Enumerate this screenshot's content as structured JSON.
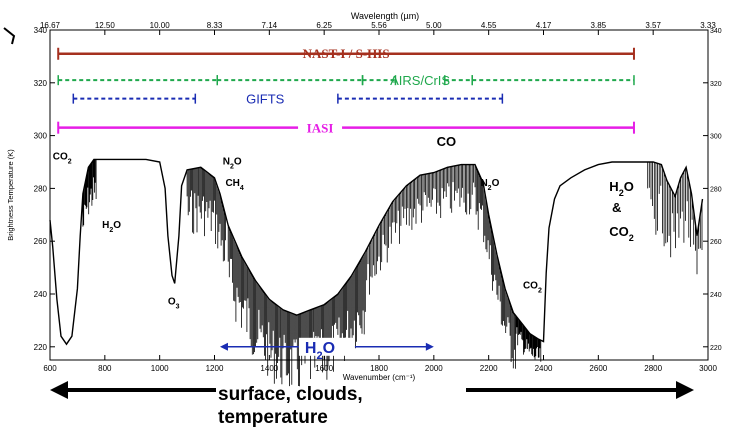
{
  "header_title": "Wavelength (µm)",
  "chart_data": {
    "type": "line",
    "title": "",
    "xlabel": "Wavenumber (cm⁻¹)",
    "ylabel": "Brightness Temperature (K)",
    "top_axis_label": "Wavelength (µm)",
    "xlim": [
      600,
      3000
    ],
    "ylim": [
      215,
      340
    ],
    "x_ticks": [
      "600",
      "800",
      "1000",
      "1200",
      "1400",
      "1600",
      "1800",
      "2000",
      "2200",
      "2400",
      "2600",
      "2800",
      "3000"
    ],
    "y_ticks_left": [
      "220",
      "240",
      "260",
      "280",
      "300",
      "320",
      "340"
    ],
    "y_ticks_right": [
      "220",
      "240",
      "260",
      "280",
      "300",
      "320",
      "340"
    ],
    "top_ticks": [
      "16.67",
      "12.50",
      "10.00",
      "8.33",
      "7.14",
      "6.25",
      "5.56",
      "5.00",
      "4.55",
      "4.17",
      "3.85",
      "3.57",
      "3.33"
    ],
    "spectrum": {
      "x": [
        600,
        610,
        625,
        640,
        660,
        680,
        700,
        710,
        720,
        740,
        760,
        800,
        850,
        900,
        950,
        1000,
        1020,
        1030,
        1045,
        1055,
        1070,
        1080,
        1100,
        1150,
        1200,
        1220,
        1250,
        1300,
        1350,
        1400,
        1450,
        1500,
        1550,
        1600,
        1650,
        1700,
        1750,
        1800,
        1850,
        1900,
        1950,
        2000,
        2050,
        2100,
        2150,
        2180,
        2200,
        2230,
        2260,
        2290,
        2320,
        2350,
        2380,
        2400,
        2410,
        2420,
        2440,
        2460,
        2500,
        2550,
        2600,
        2650,
        2700,
        2750,
        2800,
        2830,
        2850,
        2880,
        2900,
        2920,
        2940,
        2960,
        2980
      ],
      "y": [
        268,
        258,
        238,
        224,
        221,
        224,
        242,
        262,
        278,
        288,
        291,
        291,
        291,
        291,
        291,
        290,
        280,
        262,
        247,
        244,
        262,
        281,
        287,
        288,
        284,
        278,
        266,
        254,
        245,
        238,
        234,
        232,
        234,
        236,
        240,
        247,
        256,
        266,
        275,
        281,
        285,
        286,
        288,
        289,
        289,
        282,
        270,
        255,
        242,
        233,
        229,
        225,
        223,
        222,
        248,
        265,
        276,
        281,
        284,
        287,
        289,
        290,
        290,
        290,
        290,
        289,
        283,
        277,
        284,
        288,
        278,
        262,
        276
      ]
    },
    "instrument_ranges": [
      {
        "name": "NAST-I / S-HIS",
        "x_start": 630,
        "x_end": 2730,
        "level": 331,
        "color": "#a5301f",
        "style": "solid"
      },
      {
        "name": "AIRS/CrIS",
        "x_start": 630,
        "x_end": 2730,
        "level": 321,
        "color": "#1fa84c",
        "style": "dashed",
        "breaks": [
          1210,
          1740,
          2140
        ],
        "label_x": 1950
      },
      {
        "name": "GIFTS",
        "x_start": 685,
        "x_end": 2250,
        "level": 314,
        "color": "#1a2cb3",
        "style": "dashed",
        "gap": [
          1130,
          1650
        ],
        "label_x": 1385
      },
      {
        "name": "IASI",
        "x_start": 630,
        "x_end": 2730,
        "level": 303,
        "color": "#e61ee6",
        "style": "solid",
        "label_x": 1585
      }
    ],
    "annotations": [
      {
        "text": "CO",
        "sub": "2",
        "x": 610,
        "y": 291
      },
      {
        "text": "H",
        "sub": "2",
        "after": "O",
        "x": 790,
        "y": 265
      },
      {
        "text": "O",
        "sub": "3",
        "x": 1030,
        "y": 236
      },
      {
        "text": "N",
        "sub": "2",
        "after": "O",
        "x": 1230,
        "y": 289
      },
      {
        "text": "CH",
        "sub": "4",
        "x": 1240,
        "y": 281
      },
      {
        "text": "CO",
        "x": 2010,
        "y": 296
      },
      {
        "text": "N",
        "sub": "2",
        "after": "O",
        "x": 2170,
        "y": 281
      },
      {
        "text": "CO",
        "sub": "2",
        "x": 2325,
        "y": 242
      },
      {
        "text": "H",
        "sub": "2",
        "after": "O",
        "x": 2640,
        "y": 279
      },
      {
        "text": "&",
        "x": 2650,
        "y": 271
      },
      {
        "text": "CO",
        "sub": "2",
        "x": 2640,
        "y": 262
      }
    ],
    "h2o_arrow": {
      "text": "H",
      "sub": "2",
      "after": "O",
      "x_start": 1220,
      "x_end": 2000,
      "level": 220
    }
  },
  "footer": {
    "line1": "surface, clouds,",
    "line2": "temperature"
  }
}
